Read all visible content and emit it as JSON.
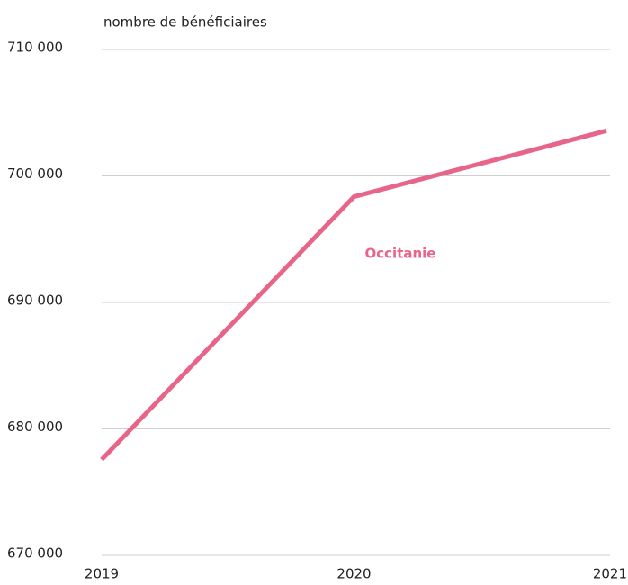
{
  "chart_data": {
    "type": "line",
    "y_axis_label": "nombre de bénéficiaires",
    "categories": [
      "2019",
      "2020",
      "2021"
    ],
    "series": [
      {
        "name": "Occitanie",
        "color": "#e8658a",
        "values": [
          677570,
          698360,
          703570
        ]
      }
    ],
    "ylim": [
      670000,
      710000
    ],
    "yticks": [
      {
        "value": 670000,
        "label": "670 000"
      },
      {
        "value": 680000,
        "label": "680 000"
      },
      {
        "value": 690000,
        "label": "690 000"
      },
      {
        "value": 700000,
        "label": "700 000"
      },
      {
        "value": 710000,
        "label": "710 000"
      }
    ],
    "grid": true
  }
}
